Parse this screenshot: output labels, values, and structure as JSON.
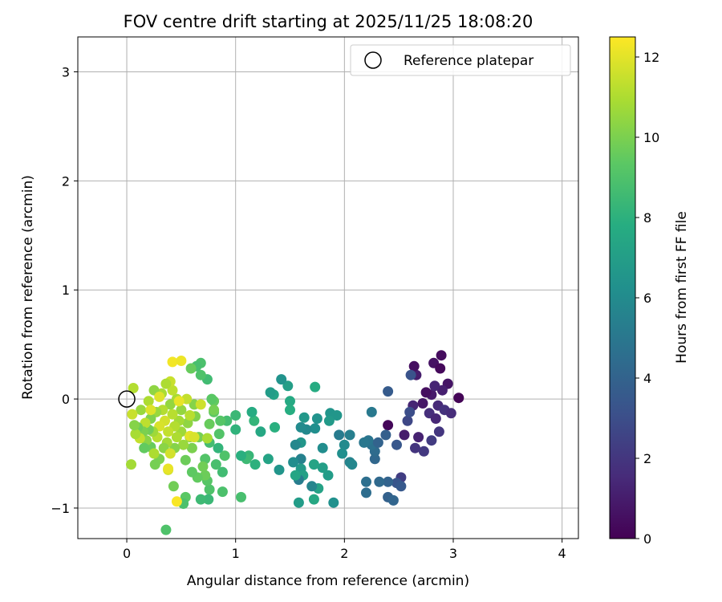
{
  "chart_data": {
    "type": "scatter",
    "title": "FOV centre drift starting at 2025/11/25 18:08:20",
    "xlabel": "Angular distance from reference (arcmin)",
    "ylabel": "Rotation from reference (arcmin)",
    "xlim": [
      -0.45,
      4.15
    ],
    "ylim": [
      -1.28,
      3.32
    ],
    "xticks": [
      0,
      1,
      2,
      3,
      4
    ],
    "yticks": [
      -1,
      0,
      1,
      2,
      3
    ],
    "xtick_labels": [
      "0",
      "1",
      "2",
      "3",
      "4"
    ],
    "ytick_labels": [
      "−1",
      "0",
      "1",
      "2",
      "3"
    ],
    "grid": true,
    "legend": {
      "placement": "top-right",
      "label": "Reference platepar"
    },
    "reference_point": {
      "x": 0,
      "y": 0
    },
    "colorbar": {
      "label": "Hours from first FF file",
      "min": 0,
      "max": 12.5,
      "ticks": [
        0,
        2,
        4,
        6,
        8,
        10,
        12
      ],
      "tick_labels": [
        "0",
        "2",
        "4",
        "6",
        "8",
        "10",
        "12"
      ],
      "colormap": "viridis"
    },
    "points": [
      [
        2.89,
        0.4,
        0.4
      ],
      [
        2.82,
        0.33,
        0.6
      ],
      [
        2.88,
        0.28,
        0.3
      ],
      [
        2.95,
        0.14,
        0.7
      ],
      [
        3.05,
        0.01,
        0.1
      ],
      [
        2.8,
        0.04,
        0.9
      ],
      [
        2.75,
        0.06,
        0.5
      ],
      [
        2.72,
        -0.04,
        0.8
      ],
      [
        2.9,
        0.08,
        1.1
      ],
      [
        2.83,
        0.12,
        1.3
      ],
      [
        2.86,
        -0.06,
        1.5
      ],
      [
        2.78,
        -0.13,
        1.7
      ],
      [
        2.84,
        -0.18,
        1.4
      ],
      [
        2.92,
        -0.1,
        1.8
      ],
      [
        2.98,
        -0.13,
        1.6
      ],
      [
        2.87,
        -0.3,
        2.0
      ],
      [
        2.8,
        -0.38,
        2.2
      ],
      [
        2.73,
        -0.48,
        2.1
      ],
      [
        2.68,
        -0.35,
        1.2
      ],
      [
        2.65,
        -0.45,
        1.9
      ],
      [
        2.66,
        0.22,
        1.0
      ],
      [
        2.64,
        0.3,
        0.5
      ],
      [
        2.63,
        -0.06,
        1.3
      ],
      [
        2.55,
        -0.33,
        1.0
      ],
      [
        2.58,
        -0.2,
        2.7
      ],
      [
        2.6,
        -0.12,
        3.0
      ],
      [
        2.61,
        0.22,
        3.2
      ],
      [
        2.48,
        -0.42,
        3.4
      ],
      [
        2.4,
        -0.24,
        0.2
      ],
      [
        2.4,
        0.07,
        3.6
      ],
      [
        2.52,
        -0.72,
        2.3
      ],
      [
        2.48,
        -0.77,
        3.3
      ],
      [
        2.52,
        -0.8,
        3.5
      ],
      [
        2.4,
        -0.9,
        3.9
      ],
      [
        2.45,
        -0.93,
        4.1
      ],
      [
        2.4,
        -0.76,
        4.0
      ],
      [
        2.32,
        -0.76,
        4.3
      ],
      [
        2.2,
        -0.76,
        4.6
      ],
      [
        2.2,
        -0.86,
        4.5
      ],
      [
        2.28,
        -0.55,
        4.2
      ],
      [
        2.28,
        -0.48,
        4.4
      ],
      [
        2.25,
        -0.42,
        4.7
      ],
      [
        2.22,
        -0.38,
        4.9
      ],
      [
        2.18,
        -0.4,
        5.0
      ],
      [
        2.25,
        -0.12,
        5.1
      ],
      [
        2.38,
        -0.33,
        3.8
      ],
      [
        2.31,
        -0.4,
        4.0
      ],
      [
        2.05,
        -0.33,
        5.4
      ],
      [
        2.05,
        -0.58,
        5.6
      ],
      [
        2.07,
        -0.6,
        5.8
      ],
      [
        2.0,
        -0.42,
        6.0
      ],
      [
        1.95,
        -0.33,
        5.2
      ],
      [
        1.98,
        -0.5,
        6.2
      ],
      [
        1.9,
        -0.95,
        6.3
      ],
      [
        1.87,
        -0.13,
        6.5
      ],
      [
        1.93,
        -0.15,
        6.6
      ],
      [
        1.86,
        -0.2,
        6.8
      ],
      [
        1.85,
        -0.7,
        6.9
      ],
      [
        1.8,
        -0.63,
        7.0
      ],
      [
        1.76,
        -0.82,
        7.2
      ],
      [
        1.72,
        -0.6,
        7.3
      ],
      [
        1.7,
        -0.8,
        5.7
      ],
      [
        1.72,
        -0.92,
        7.5
      ],
      [
        1.75,
        -0.18,
        6.4
      ],
      [
        1.73,
        0.11,
        7.7
      ],
      [
        1.73,
        -0.27,
        6.2
      ],
      [
        1.8,
        -0.45,
        6.1
      ],
      [
        1.65,
        -0.28,
        5.9
      ],
      [
        1.63,
        -0.17,
        6.7
      ],
      [
        1.6,
        -0.26,
        6.0
      ],
      [
        1.6,
        -0.4,
        6.6
      ],
      [
        1.6,
        -0.55,
        5.5
      ],
      [
        1.6,
        -0.64,
        6.8
      ],
      [
        1.62,
        -0.7,
        7.1
      ],
      [
        1.58,
        -0.74,
        5.3
      ],
      [
        1.58,
        -0.95,
        6.9
      ],
      [
        1.55,
        -0.7,
        7.4
      ],
      [
        1.55,
        -0.42,
        5.8
      ],
      [
        1.53,
        -0.58,
        6.1
      ],
      [
        1.5,
        -0.02,
        7.6
      ],
      [
        1.5,
        -0.1,
        7.8
      ],
      [
        1.48,
        0.12,
        7.0
      ],
      [
        1.42,
        0.18,
        6.4
      ],
      [
        1.4,
        -0.65,
        6.5
      ],
      [
        1.36,
        -0.26,
        7.9
      ],
      [
        1.35,
        0.04,
        7.2
      ],
      [
        1.32,
        0.06,
        6.9
      ],
      [
        1.3,
        -0.55,
        7.3
      ],
      [
        1.23,
        -0.3,
        7.5
      ],
      [
        1.18,
        -0.6,
        8.0
      ],
      [
        1.17,
        -0.2,
        8.2
      ],
      [
        1.15,
        -0.12,
        7.7
      ],
      [
        1.12,
        -0.52,
        8.3
      ],
      [
        1.1,
        -0.55,
        8.5
      ],
      [
        1.05,
        -0.9,
        8.8
      ],
      [
        1.05,
        -0.52,
        7.9
      ],
      [
        1.0,
        -0.15,
        8.4
      ],
      [
        1.0,
        -0.28,
        8.1
      ],
      [
        0.92,
        -0.2,
        8.7
      ],
      [
        0.9,
        -0.52,
        9.0
      ],
      [
        0.88,
        -0.85,
        8.9
      ],
      [
        0.88,
        -0.67,
        8.6
      ],
      [
        0.86,
        -0.2,
        9.2
      ],
      [
        0.85,
        -0.32,
        9.1
      ],
      [
        0.84,
        -0.45,
        8.2
      ],
      [
        0.82,
        -0.6,
        8.8
      ],
      [
        0.8,
        -0.12,
        9.4
      ],
      [
        0.8,
        -0.02,
        9.5
      ],
      [
        0.78,
        0.0,
        9.3
      ],
      [
        0.76,
        -0.23,
        9.6
      ],
      [
        0.76,
        -0.4,
        8.7
      ],
      [
        0.76,
        -0.83,
        9.0
      ],
      [
        0.75,
        -0.92,
        8.4
      ],
      [
        0.74,
        -0.75,
        9.2
      ],
      [
        0.74,
        0.18,
        8.6
      ],
      [
        0.72,
        -0.7,
        9.7
      ],
      [
        0.72,
        -0.55,
        9.1
      ],
      [
        0.7,
        -0.62,
        9.8
      ],
      [
        0.68,
        0.33,
        8.9
      ],
      [
        0.68,
        0.22,
        9.0
      ],
      [
        0.68,
        -0.92,
        8.5
      ],
      [
        0.66,
        -0.35,
        9.9
      ],
      [
        0.65,
        -0.72,
        9.5
      ],
      [
        0.64,
        0.3,
        8.8
      ],
      [
        0.63,
        -0.16,
        10.1
      ],
      [
        0.62,
        -0.05,
        10.2
      ],
      [
        0.6,
        -0.67,
        9.4
      ],
      [
        0.6,
        -0.45,
        10.0
      ],
      [
        0.59,
        0.28,
        9.6
      ],
      [
        0.58,
        -0.35,
        10.3
      ],
      [
        0.56,
        -0.22,
        10.4
      ],
      [
        0.54,
        -0.56,
        9.7
      ],
      [
        0.54,
        -0.9,
        9.3
      ],
      [
        0.52,
        -0.96,
        8.9
      ],
      [
        0.52,
        -0.42,
        10.6
      ],
      [
        0.5,
        -0.3,
        10.7
      ],
      [
        0.5,
        -0.1,
        10.5
      ],
      [
        0.48,
        -0.2,
        10.8
      ],
      [
        0.46,
        0.0,
        10.9
      ],
      [
        0.46,
        -0.35,
        11.0
      ],
      [
        0.44,
        -0.25,
        11.1
      ],
      [
        0.44,
        -0.45,
        10.2
      ],
      [
        0.43,
        -0.8,
        9.8
      ],
      [
        0.42,
        -0.14,
        11.2
      ],
      [
        0.42,
        0.08,
        11.3
      ],
      [
        0.4,
        -0.05,
        10.5
      ],
      [
        0.4,
        0.16,
        11.5
      ],
      [
        0.38,
        -0.3,
        11.4
      ],
      [
        0.38,
        -0.65,
        11.6
      ],
      [
        0.37,
        -0.4,
        10.8
      ],
      [
        0.36,
        0.14,
        11.0
      ],
      [
        0.35,
        -0.2,
        11.7
      ],
      [
        0.34,
        -0.45,
        10.3
      ],
      [
        0.33,
        -0.1,
        11.1
      ],
      [
        0.32,
        0.05,
        10.9
      ],
      [
        0.3,
        -0.25,
        11.8
      ],
      [
        0.3,
        -0.55,
        10.0
      ],
      [
        0.28,
        -0.35,
        11.2
      ],
      [
        0.27,
        -0.12,
        10.6
      ],
      [
        0.26,
        -0.6,
        9.9
      ],
      [
        0.25,
        0.08,
        10.4
      ],
      [
        0.24,
        -0.3,
        10.7
      ],
      [
        0.22,
        -0.44,
        9.6
      ],
      [
        0.22,
        -0.18,
        10.1
      ],
      [
        0.2,
        -0.02,
        11.0
      ],
      [
        0.2,
        -0.28,
        9.8
      ],
      [
        0.18,
        -0.38,
        10.3
      ],
      [
        0.17,
        -0.22,
        11.3
      ],
      [
        0.16,
        -0.45,
        9.5
      ],
      [
        0.15,
        -0.3,
        10.0
      ],
      [
        0.13,
        -0.1,
        10.6
      ],
      [
        0.12,
        -0.36,
        11.4
      ],
      [
        0.1,
        -0.26,
        9.7
      ],
      [
        0.08,
        -0.32,
        10.9
      ],
      [
        0.07,
        -0.24,
        10.2
      ],
      [
        0.06,
        0.1,
        11.1
      ],
      [
        0.05,
        -0.14,
        11.5
      ],
      [
        0.04,
        -0.6,
        10.8
      ],
      [
        0.22,
        -0.1,
        11.9
      ],
      [
        0.25,
        -0.5,
        11.0
      ],
      [
        0.42,
        0.34,
        12.3
      ],
      [
        0.5,
        0.35,
        12.2
      ],
      [
        0.38,
        -0.64,
        12.1
      ],
      [
        0.46,
        -0.94,
        12.4
      ],
      [
        0.58,
        -0.34,
        12.0
      ],
      [
        0.62,
        -0.35,
        11.8
      ],
      [
        0.68,
        -0.05,
        11.6
      ],
      [
        0.55,
        0.0,
        11.4
      ],
      [
        0.74,
        -0.36,
        10.9
      ],
      [
        0.8,
        -0.1,
        9.9
      ],
      [
        0.36,
        -1.2,
        9.0
      ],
      [
        0.48,
        -0.02,
        12.1
      ],
      [
        0.4,
        -0.5,
        11.7
      ],
      [
        0.3,
        0.02,
        11.9
      ],
      [
        0.58,
        -0.15,
        11.2
      ]
    ]
  }
}
